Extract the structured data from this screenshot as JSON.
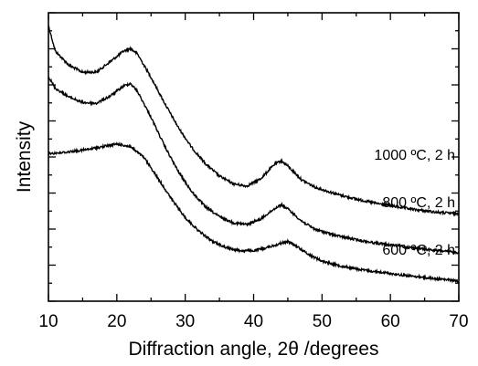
{
  "chart_data": {
    "type": "line",
    "xlabel": "Diffraction angle, 2θ /degrees",
    "ylabel": "Intensity",
    "xlim": [
      10,
      70
    ],
    "ylim": [
      0,
      100
    ],
    "y_tick_labels_shown": false,
    "x_ticks": [
      10,
      20,
      30,
      40,
      50,
      60,
      70
    ],
    "grid": false,
    "legend": "none",
    "series": [
      {
        "name": "1000 ºC, 2 h",
        "x": [
          10,
          11,
          13,
          15,
          17,
          19,
          21,
          22,
          23,
          25,
          27,
          29,
          31,
          33,
          35,
          37,
          39,
          41,
          43,
          44,
          45,
          47,
          49,
          52,
          55,
          58,
          61,
          64,
          67,
          70
        ],
        "y": [
          95.6,
          86.7,
          81.8,
          79.4,
          79.4,
          83.0,
          86.7,
          87.6,
          85.8,
          77.6,
          68.6,
          60.2,
          53.1,
          47.6,
          43.4,
          40.7,
          39.9,
          42.4,
          47.3,
          48.7,
          46.9,
          42.1,
          39.5,
          37.2,
          35.4,
          33.9,
          32.7,
          31.6,
          30.8,
          30.3
        ]
      },
      {
        "name": "800 ºC, 2 h",
        "x": [
          10,
          11,
          13,
          15,
          17,
          19,
          21,
          22,
          23,
          25,
          27,
          29,
          31,
          33,
          35,
          37,
          39,
          41,
          43,
          44,
          45,
          47,
          49,
          52,
          55,
          58,
          61,
          64,
          67,
          70
        ],
        "y": [
          77.9,
          73.8,
          70.8,
          68.9,
          68.6,
          71.1,
          74.6,
          75.5,
          72.8,
          63.8,
          53.7,
          44.9,
          37.8,
          32.6,
          29.3,
          27.2,
          26.6,
          28.4,
          32.0,
          33.5,
          32.0,
          27.8,
          24.9,
          22.8,
          21.3,
          20.1,
          19.2,
          18.3,
          17.5,
          16.9
        ]
      },
      {
        "name": "600 ºC, 2 h",
        "x": [
          10,
          12,
          14,
          16,
          18,
          20,
          22,
          24,
          26,
          28,
          30,
          32,
          34,
          36,
          38,
          40,
          42,
          44,
          45,
          46,
          48,
          50,
          53,
          56,
          59,
          62,
          65,
          68,
          70
        ],
        "y": [
          51.2,
          51.5,
          52.1,
          52.7,
          53.6,
          54.5,
          53.6,
          49.7,
          42.7,
          35.4,
          29.0,
          24.3,
          20.7,
          18.6,
          17.5,
          17.5,
          18.6,
          20.1,
          20.7,
          19.5,
          16.3,
          13.9,
          12.1,
          10.8,
          9.9,
          9.0,
          8.2,
          7.5,
          7.0
        ]
      }
    ]
  }
}
